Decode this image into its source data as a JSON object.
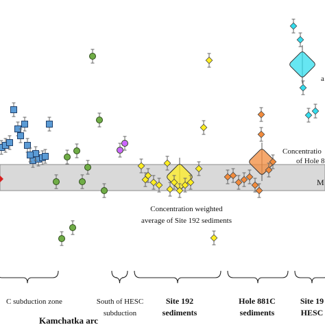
{
  "chart_data": {
    "type": "scatter",
    "title": "",
    "xlabel": "",
    "ylabel": "",
    "band_label": "M",
    "series": [
      {
        "name": "",
        "color": "#5b9bd5",
        "marker": "square",
        "points": [
          [
            2,
            215
          ],
          [
            8,
            212
          ],
          [
            14,
            208
          ],
          [
            20,
            160
          ],
          [
            26,
            188
          ],
          [
            30,
            198
          ],
          [
            36,
            181
          ],
          [
            40,
            212
          ],
          [
            48,
            234
          ],
          [
            56,
            232
          ],
          [
            62,
            230
          ],
          [
            72,
            181
          ],
          [
            52,
            224
          ],
          [
            66,
            228
          ],
          [
            44,
            226
          ]
        ]
      },
      {
        "name": "",
        "color": "#70ad47",
        "marker": "circle",
        "points": [
          [
            135,
            82
          ],
          [
            145,
            175
          ],
          [
            98,
            229
          ],
          [
            112,
            220
          ],
          [
            128,
            244
          ],
          [
            120,
            265
          ],
          [
            82,
            265
          ],
          [
            152,
            278
          ],
          [
            106,
            332
          ],
          [
            90,
            348
          ]
        ]
      },
      {
        "name": "",
        "color": "#cc66ff",
        "marker": "circle",
        "points": [
          [
            182,
            209
          ],
          [
            175,
            219
          ]
        ]
      },
      {
        "name": "",
        "color": "#ffee22",
        "marker": "diamond",
        "points": [
          [
            305,
            88
          ],
          [
            297,
            186
          ],
          [
            206,
            242
          ],
          [
            216,
            256
          ],
          [
            244,
            238
          ],
          [
            224,
            266
          ],
          [
            232,
            270
          ],
          [
            248,
            276
          ],
          [
            254,
            266
          ],
          [
            262,
            278
          ],
          [
            270,
            270
          ],
          [
            278,
            266
          ],
          [
            290,
            246
          ],
          [
            212,
            262
          ],
          [
            312,
            347
          ]
        ]
      },
      {
        "name": "",
        "color": "#f28b3c",
        "marker": "diamond",
        "points": [
          [
            381,
            167
          ],
          [
            381,
            196
          ],
          [
            332,
            258
          ],
          [
            340,
            256
          ],
          [
            348,
            266
          ],
          [
            356,
            262
          ],
          [
            364,
            258
          ],
          [
            372,
            270
          ],
          [
            378,
            278
          ],
          [
            398,
            236
          ],
          [
            392,
            248
          ]
        ]
      },
      {
        "name": "",
        "color": "#33ddee",
        "marker": "diamond",
        "points": [
          [
            428,
            38
          ],
          [
            438,
            58
          ],
          [
            442,
            128
          ],
          [
            450,
            168
          ],
          [
            460,
            162
          ]
        ]
      }
    ],
    "averages": [
      {
        "name": "Site 192",
        "color": "#ffee22",
        "point": [
          262,
          258
        ]
      },
      {
        "name": "Hole 881C",
        "color": "#f28b3c",
        "point": [
          382,
          236
        ]
      },
      {
        "name": "",
        "color": "#33ddee",
        "point": [
          441,
          94
        ]
      }
    ],
    "annotations": [
      {
        "text": "Concentration weighted",
        "pos": [
          272,
          308
        ]
      },
      {
        "text": "average of Site 192 sediments",
        "pos": [
          272,
          325
        ]
      },
      {
        "text": "Concentratio",
        "pos": [
          412,
          224
        ]
      },
      {
        "text": "of Hole 8",
        "pos": [
          432,
          238
        ]
      },
      {
        "text": "a",
        "pos": [
          468,
          118
        ]
      }
    ],
    "groups": [
      {
        "line1": "C subduction zone",
        "line2": "",
        "center": 50,
        "bold": false
      },
      {
        "line1": "South of HESC",
        "line2": "subduction",
        "center": 175,
        "bold": false
      },
      {
        "line1": "Site 192",
        "line2": "sediments",
        "center": 262,
        "bold": true
      },
      {
        "line1": "Hole 881C",
        "line2": "sediments",
        "center": 375,
        "bold": true
      },
      {
        "line1": "Site 19",
        "line2": "HESC",
        "center": 455,
        "bold": true
      }
    ],
    "group_label": "Kamchatka arc"
  }
}
